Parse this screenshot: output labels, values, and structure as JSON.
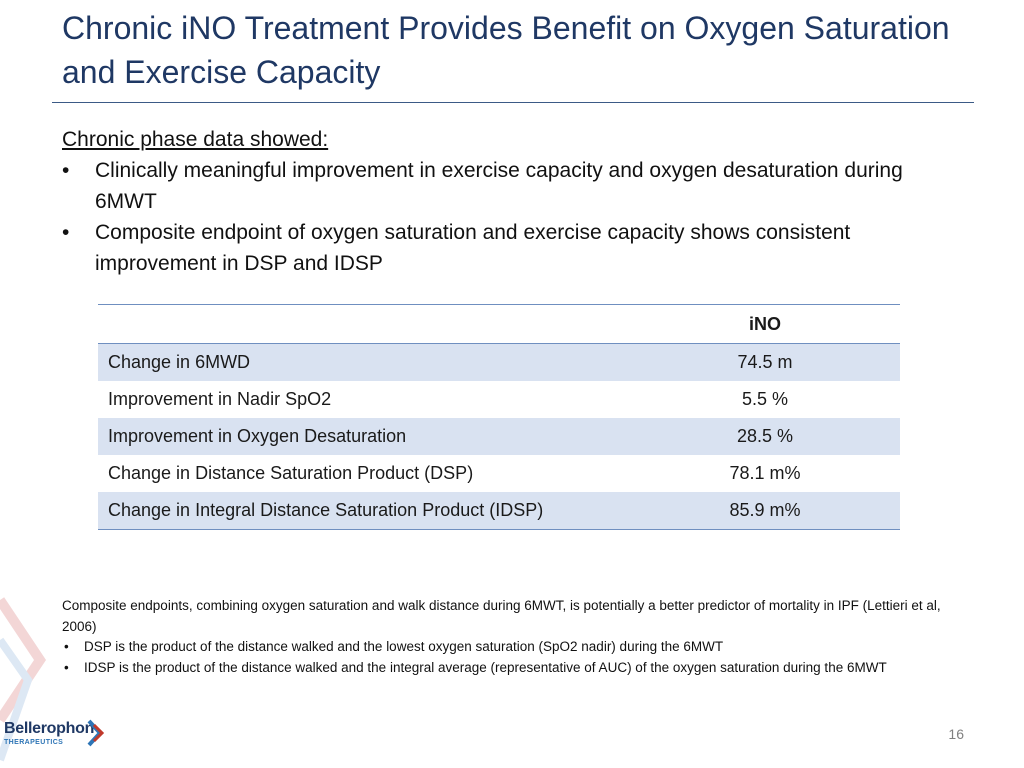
{
  "slide": {
    "title": "Chronic iNO Treatment Provides Benefit on Oxygen Saturation and Exercise Capacity",
    "page_number": "16"
  },
  "intro": {
    "heading": "Chronic phase data showed:",
    "bullets": [
      "Clinically meaningful improvement in exercise capacity and oxygen desaturation during 6MWT",
      "Composite endpoint of oxygen saturation and exercise capacity shows consistent improvement in DSP and IDSP"
    ]
  },
  "table": {
    "header": [
      "",
      "iNO"
    ],
    "rows": [
      {
        "label": "Change in 6MWD",
        "value": "74.5 m"
      },
      {
        "label": "Improvement in Nadir SpO2",
        "value": "5.5 %"
      },
      {
        "label": "Improvement in Oxygen Desaturation",
        "value": "28.5 %"
      },
      {
        "label": "Change in Distance Saturation Product (DSP)",
        "value": "78.1 m%"
      },
      {
        "label": "Change in Integral Distance Saturation Product (IDSP)",
        "value": "85.9 m%"
      }
    ]
  },
  "footnote": {
    "text": "Composite endpoints, combining oxygen saturation and walk distance during 6MWT, is potentially a better predictor of mortality in IPF (Lettieri et al, 2006)",
    "bullets": [
      "DSP is the product of the distance walked and the lowest oxygen saturation (SpO2 nadir) during the 6MWT",
      "IDSP is the product of the distance walked and the integral average (representative of AUC) of the oxygen saturation during the 6MWT"
    ]
  },
  "logo": {
    "name": "Bellerophon",
    "subtitle": "THERAPEUTICS",
    "icon": "bellerophon-chevron-logo-icon"
  },
  "colors": {
    "title": "#1f3864",
    "rule": "#3b5a86",
    "table_shade": "#d9e2f1",
    "table_border": "#6f8fc0",
    "logo_red": "#c0392b",
    "logo_blue": "#2e75b6"
  }
}
